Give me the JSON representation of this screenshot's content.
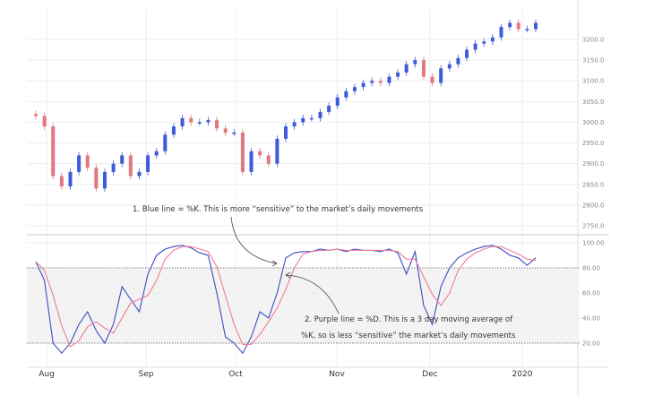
{
  "chart_data": [
    {
      "type": "candlestick",
      "yticks": [
        "3200.0",
        "3150.0",
        "3100.0",
        "3050.0",
        "3000.0",
        "2950.0",
        "2900.0",
        "2850.0",
        "2800.0",
        "2750.0"
      ],
      "ylim": [
        2740,
        3260
      ],
      "close": [
        3015,
        2990,
        2870,
        2845,
        2880,
        2920,
        2890,
        2840,
        2880,
        2900,
        2920,
        2870,
        2880,
        2920,
        2930,
        2970,
        2990,
        3010,
        3000,
        3000,
        3005,
        2985,
        2975,
        2975,
        2880,
        2930,
        2920,
        2900,
        2960,
        2990,
        3000,
        3010,
        3010,
        3025,
        3040,
        3060,
        3075,
        3085,
        3095,
        3100,
        3095,
        3110,
        3120,
        3140,
        3150,
        3110,
        3095,
        3130,
        3140,
        3155,
        3175,
        3190,
        3195,
        3205,
        3230,
        3240,
        3225,
        3225,
        3240
      ],
      "colors": {
        "up": "#3f5bd9",
        "down": "#e0787e"
      }
    },
    {
      "type": "line",
      "yticks": [
        "100.00",
        "80.00",
        "60.00",
        "40.00",
        "20.00"
      ],
      "ylim": [
        0,
        100
      ],
      "bands": [
        20,
        80
      ],
      "series": [
        {
          "values": [
            85,
            70,
            20,
            12,
            20,
            35,
            45,
            30,
            20,
            35,
            65,
            55,
            45,
            75,
            90,
            95,
            97,
            98,
            96,
            92,
            90,
            60,
            25,
            20,
            12,
            25,
            45,
            40,
            60,
            88,
            92,
            93,
            93,
            95,
            94,
            95,
            93,
            95,
            94,
            94,
            93,
            95,
            92,
            75,
            93,
            50,
            35,
            65,
            80,
            88,
            92,
            95,
            97,
            98,
            95,
            90,
            88,
            82,
            88
          ],
          "color": "#3b4cc0"
        },
        {
          "values": [
            85,
            78,
            58,
            34,
            17,
            22,
            33,
            37,
            32,
            28,
            40,
            52,
            55,
            58,
            70,
            87,
            94,
            97,
            97,
            95,
            93,
            81,
            58,
            35,
            19,
            19,
            27,
            37,
            48,
            63,
            80,
            91,
            93,
            94,
            94,
            95,
            94,
            94,
            94,
            94,
            94,
            94,
            93,
            87,
            87,
            73,
            59,
            50,
            60,
            78,
            87,
            92,
            95,
            97,
            97,
            94,
            91,
            87,
            86
          ],
          "color": "#ef7a9a"
        }
      ]
    }
  ],
  "xticks": [
    "Aug",
    "Sep",
    "Oct",
    "Nov",
    "Dec",
    "2020"
  ],
  "annotations": [
    "1. Blue line = %K. This is more “sensitive” to the market’s daily movements",
    "2. Purple line = %D. This is a 3 day moving average of",
    "%K, so is less “sensitive” the market’s daily movements"
  ]
}
